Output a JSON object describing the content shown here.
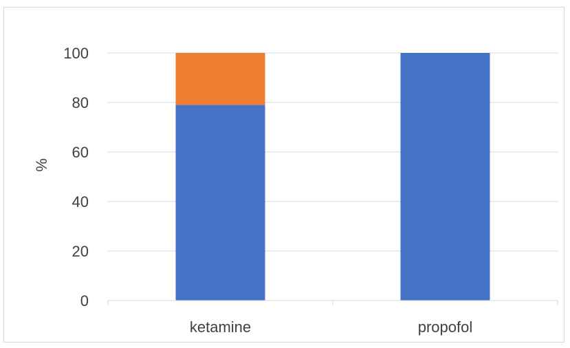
{
  "chart_data": {
    "type": "bar",
    "stacked": true,
    "categories": [
      "ketamine",
      "propofol"
    ],
    "series": [
      {
        "color": "#4472c4",
        "values": [
          79,
          100
        ]
      },
      {
        "color": "#ed7d31",
        "values": [
          21,
          0
        ]
      }
    ],
    "title": "",
    "xlabel": "",
    "ylabel": "%",
    "ylim": [
      0,
      100
    ],
    "yticks": [
      0,
      20,
      40,
      60,
      80,
      100
    ],
    "grid": true,
    "gridline_color": "#d9d9d9",
    "legend": "none"
  }
}
